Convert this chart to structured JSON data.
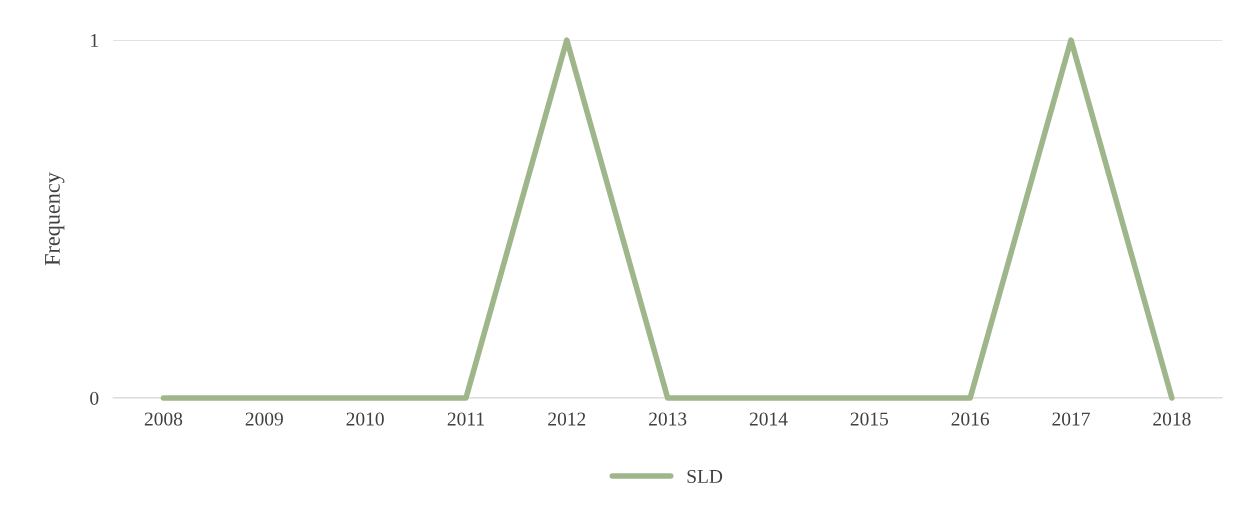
{
  "chart_data": {
    "type": "line",
    "ylabel": "Frequency",
    "categories": [
      "2008",
      "2009",
      "2010",
      "2011",
      "2012",
      "2013",
      "2014",
      "2015",
      "2016",
      "2017",
      "2018"
    ],
    "series": [
      {
        "name": "SLD",
        "color": "#9fb68b",
        "values": [
          0,
          0,
          0,
          0,
          1,
          0,
          0,
          0,
          0,
          1,
          0
        ]
      }
    ],
    "ylim": [
      0,
      1
    ],
    "yticks": [
      0,
      1
    ],
    "grid": "y",
    "legend": "bottom",
    "marker": "none",
    "line_style": "solid"
  }
}
